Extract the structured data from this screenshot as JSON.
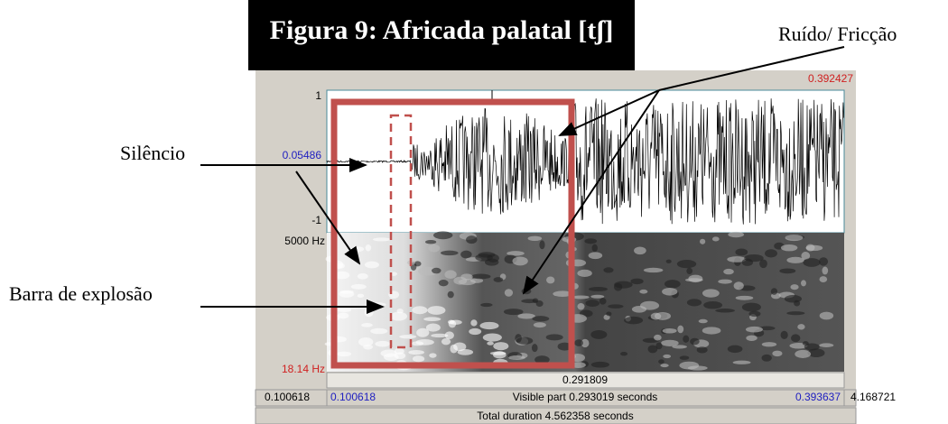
{
  "title": "Figura 9: Africada palatal [tʃ]",
  "annotations": {
    "noise": "Ruído/ Fricção",
    "silence": "Silêncio",
    "burst": "Barra de explosão"
  },
  "editor": {
    "cursor_top": "0.392427",
    "amp_max": "1",
    "amp_cursor": "0.05486",
    "amp_min": "-1",
    "freq_max": "5000 Hz",
    "freq_min": "18.14 Hz",
    "selection_duration": "0.291809",
    "left_outside": "0.100618",
    "view_start": "0.100618",
    "visible_part": "Visible part 0.293019 seconds",
    "view_end": "0.393637",
    "right_outside": "4.168721",
    "total_duration": "Total duration 4.562358 seconds"
  }
}
